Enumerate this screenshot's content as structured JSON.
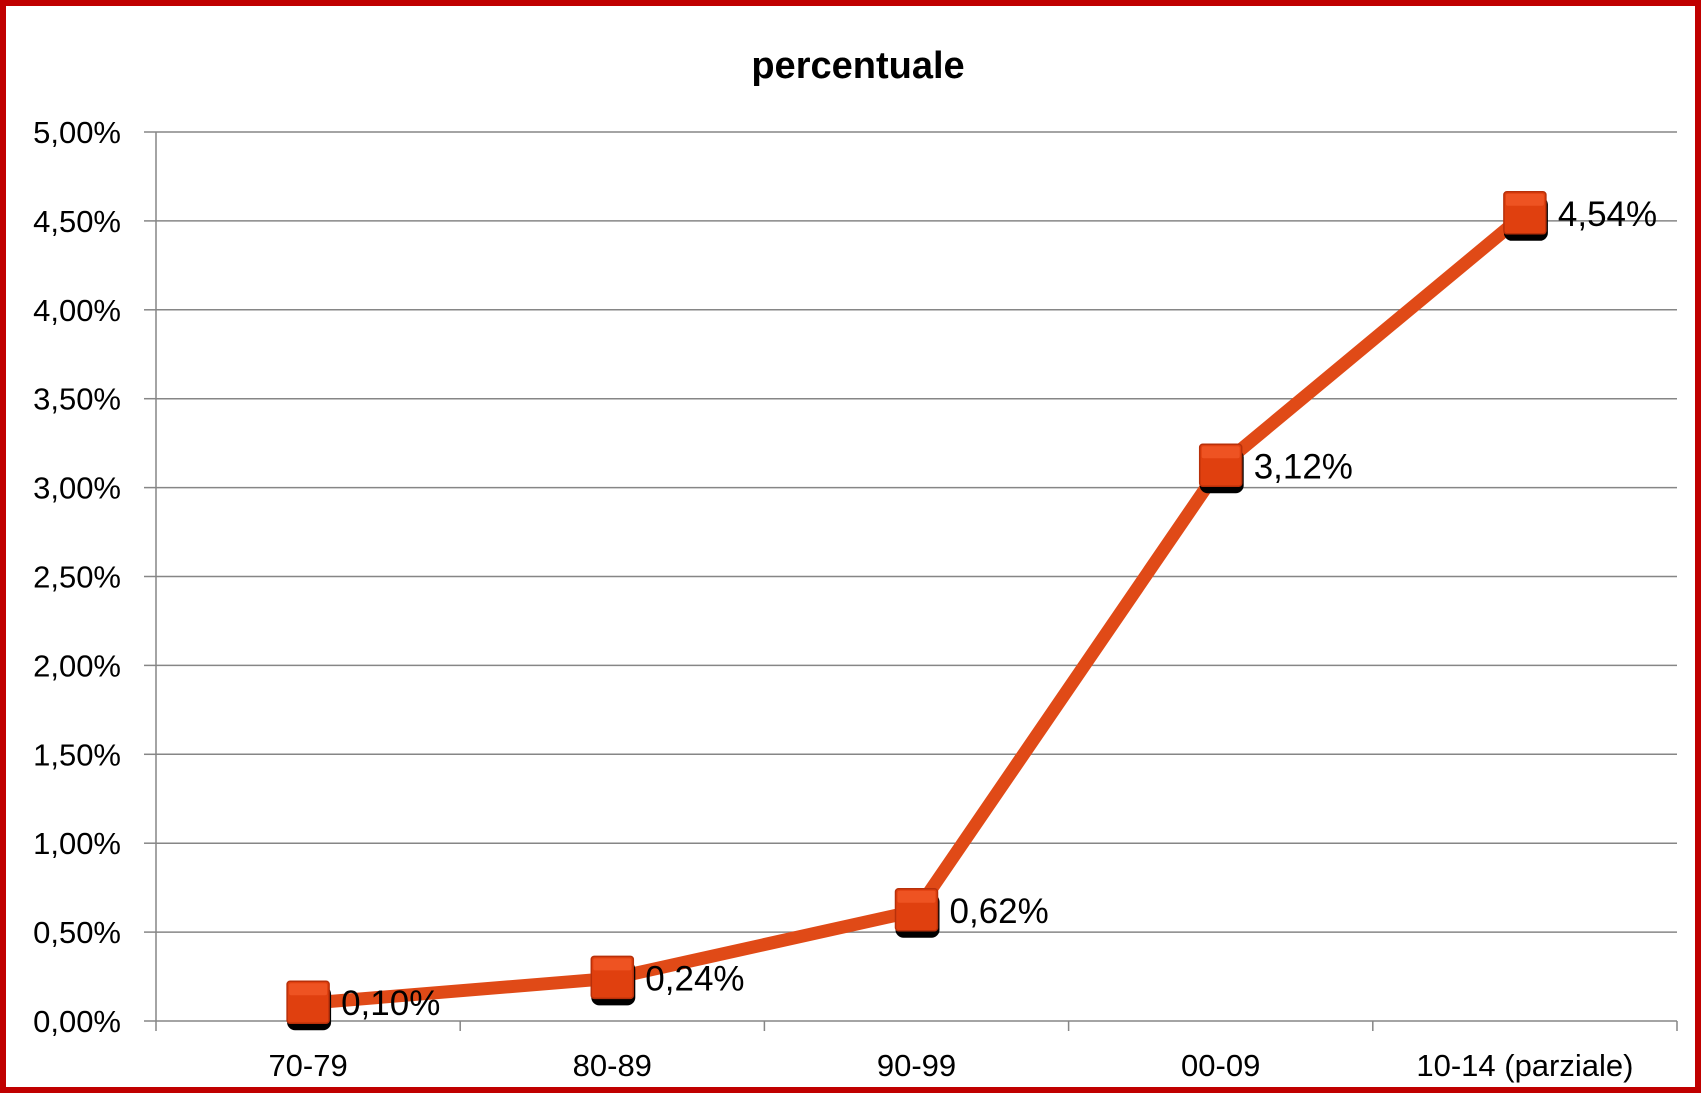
{
  "chart_data": {
    "type": "line",
    "title": "percentuale",
    "xlabel": "",
    "ylabel": "",
    "categories": [
      "70-79",
      "80-89",
      "90-99",
      "00-09",
      "10-14 (parziale)"
    ],
    "series": [
      {
        "values": [
          0.1,
          0.24,
          0.62,
          3.12,
          4.54
        ],
        "data_labels": [
          "0,10%",
          "0,24%",
          "0,62%",
          "3,12%",
          "4,54%"
        ],
        "color": "#e04a17",
        "marker": "square",
        "marker_color": "#e0400f",
        "marker_shadow": "#000000"
      }
    ],
    "ylim": [
      0,
      5
    ],
    "yticks": [
      0,
      0.5,
      1,
      1.5,
      2,
      2.5,
      3,
      3.5,
      4,
      4.5,
      5
    ],
    "ytick_labels": [
      "0,00%",
      "0,50%",
      "1,00%",
      "1,50%",
      "2,00%",
      "2,50%",
      "3,00%",
      "3,50%",
      "4,00%",
      "4,50%",
      "5,00%"
    ],
    "grid": true,
    "legend": "none",
    "frame_color": "#c00000",
    "gridline_color": "#868686"
  }
}
